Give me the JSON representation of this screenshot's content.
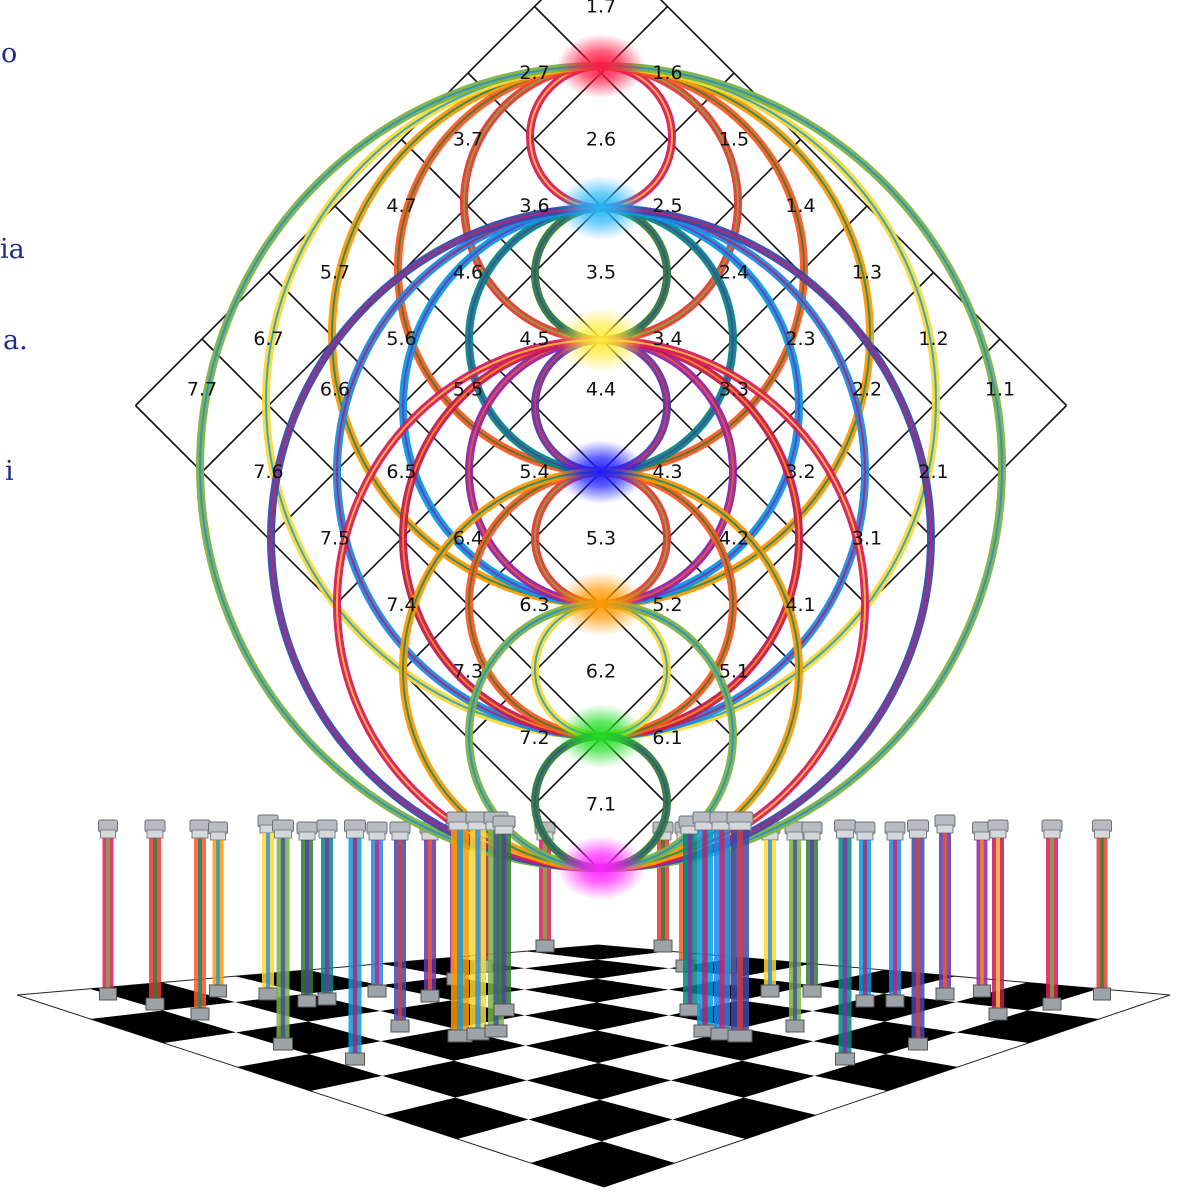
{
  "side_text": [
    "o",
    "ia",
    "a.",
    "i"
  ],
  "grid_labels": [
    "1.1",
    "1.2",
    "1.3",
    "1.4",
    "1.5",
    "1.6",
    "1.7",
    "2.1",
    "2.2",
    "2.3",
    "2.4",
    "2.5",
    "2.6",
    "2.7",
    "3.1",
    "3.2",
    "3.3",
    "3.4",
    "3.5",
    "3.6",
    "3.7",
    "4.1",
    "4.2",
    "4.3",
    "4.4",
    "4.5",
    "4.6",
    "4.7",
    "5.1",
    "5.2",
    "5.3",
    "5.4",
    "5.5",
    "5.6",
    "5.7",
    "6.1",
    "6.2",
    "6.3",
    "6.4",
    "6.5",
    "6.6",
    "6.7",
    "7.1",
    "7.2",
    "7.3",
    "7.4",
    "7.5",
    "7.6",
    "7.7"
  ],
  "node_colors": [
    "#ff1744",
    "#29b6f6",
    "#ffeb3b",
    "#1a1aff",
    "#ff9800",
    "#22dd22",
    "#ff22ff"
  ],
  "ring_colors": [
    "#d81b60",
    "#e53935",
    "#ff5722",
    "#ff9800",
    "#fdd835",
    "#7cb342",
    "#2e7d32",
    "#00897b",
    "#039be5",
    "#1e88e5",
    "#3949ab",
    "#5e35b1",
    "#8e24aa",
    "#c2185b"
  ],
  "floor_colors": [
    "#000000",
    "#ffffff"
  ]
}
